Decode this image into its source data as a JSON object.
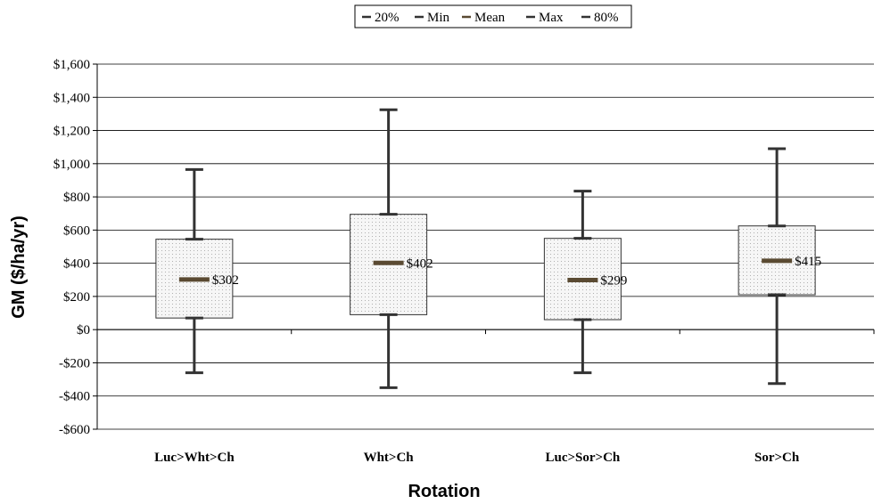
{
  "chart_data": {
    "type": "box",
    "xlabel": "Rotation",
    "ylabel": "GM ($/ha/yr)",
    "ylim": [
      -600,
      1600
    ],
    "ytick_step": 200,
    "grid": true,
    "legend_position": "top-center",
    "legend": [
      {
        "label": "20%",
        "color": "#333333"
      },
      {
        "label": "Min",
        "color": "#333333"
      },
      {
        "label": "Mean",
        "color": "#5a4a32"
      },
      {
        "label": "Max",
        "color": "#333333"
      },
      {
        "label": "80%",
        "color": "#333333"
      }
    ],
    "categories": [
      "Luc>Wht>Ch",
      "Wht>Ch",
      "Luc>Sor>Ch",
      "Sor>Ch"
    ],
    "series": [
      {
        "name": "Min",
        "values": [
          -260,
          -350,
          -260,
          -325
        ]
      },
      {
        "name": "20%",
        "values": [
          70,
          90,
          60,
          210
        ]
      },
      {
        "name": "Mean",
        "values": [
          302,
          402,
          299,
          415
        ]
      },
      {
        "name": "80%",
        "values": [
          545,
          695,
          550,
          625
        ]
      },
      {
        "name": "Max",
        "values": [
          965,
          1325,
          835,
          1090
        ]
      }
    ],
    "mean_labels": [
      "$302",
      "$402",
      "$299",
      "$415"
    ],
    "colors": {
      "whisker": "#333333",
      "mean": "#5a4a32",
      "box_fill": "#f5f5f5",
      "box_dots": "#b5b5b5",
      "grid": "#000000"
    }
  }
}
